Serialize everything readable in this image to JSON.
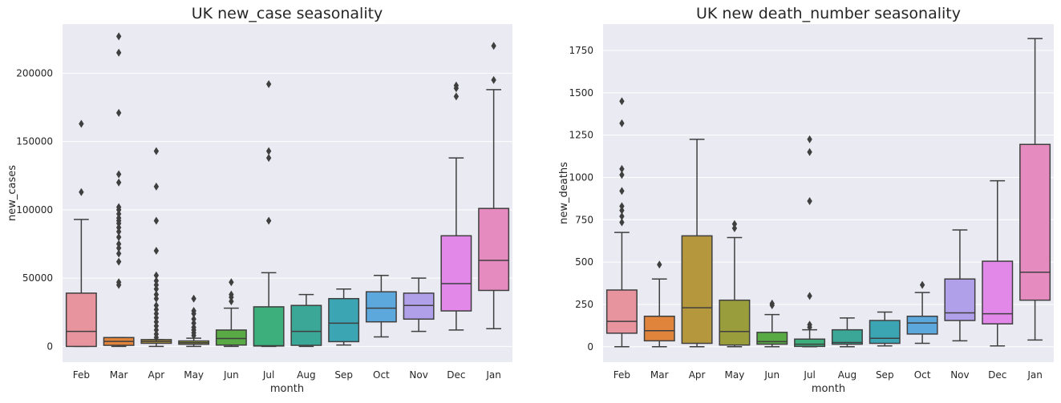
{
  "chart_data": [
    {
      "type": "box",
      "title": "UK new_case seasonality",
      "xlabel": "month",
      "ylabel": "new_cases",
      "ylim": [
        -11500,
        236000
      ],
      "yticks": [
        0,
        50000,
        100000,
        150000,
        200000
      ],
      "ytick_labels": [
        "0",
        "50000",
        "100000",
        "150000",
        "200000"
      ],
      "grid": true,
      "categories": [
        "Feb",
        "Mar",
        "Apr",
        "May",
        "Jun",
        "Jul",
        "Aug",
        "Sep",
        "Oct",
        "Nov",
        "Dec",
        "Jan"
      ],
      "colors": [
        "#e8949f",
        "#e0843c",
        "#b5973e",
        "#9a9d3c",
        "#59a944",
        "#3daf7d",
        "#3ba897",
        "#3ca5b4",
        "#5ca7dc",
        "#b0a0ea",
        "#e188e8",
        "#e68bc0"
      ],
      "boxes": [
        {
          "wlo": 0,
          "q1": 0,
          "med": 11000,
          "q3": 39000,
          "whi": 93000,
          "fliers": [
            113000,
            163000
          ]
        },
        {
          "wlo": 0,
          "q1": 800,
          "med": 3700,
          "q3": 6500,
          "whi": 6500,
          "fliers": [
            45000,
            47000,
            62000,
            68000,
            72000,
            75000,
            80000,
            84000,
            87000,
            90000,
            92000,
            94000,
            97000,
            100000,
            102000,
            120000,
            126000,
            171000,
            215000,
            227000
          ]
        },
        {
          "wlo": 0,
          "q1": 2300,
          "med": 3700,
          "q3": 5000,
          "whi": 5000,
          "fliers": [
            6500,
            9000,
            12000,
            15000,
            18000,
            21000,
            24000,
            27000,
            30000,
            35000,
            38000,
            42000,
            45000,
            48000,
            52000,
            70000,
            92000,
            117000,
            143000
          ]
        },
        {
          "wlo": 0,
          "q1": 1600,
          "med": 2700,
          "q3": 4000,
          "whi": 6000,
          "fliers": [
            8000,
            10000,
            12000,
            14000,
            17000,
            20000,
            24000,
            26000,
            35000
          ]
        },
        {
          "wlo": 0,
          "q1": 1000,
          "med": 5800,
          "q3": 12000,
          "whi": 28000,
          "fliers": [
            33000,
            36000,
            38000,
            47000
          ]
        },
        {
          "wlo": 0,
          "q1": 300,
          "med": 500,
          "q3": 29000,
          "whi": 54000,
          "fliers": [
            92000,
            138000,
            143000,
            192000
          ]
        },
        {
          "wlo": 0,
          "q1": 800,
          "med": 11000,
          "q3": 30000,
          "whi": 38000,
          "fliers": []
        },
        {
          "wlo": 1000,
          "q1": 3500,
          "med": 17000,
          "q3": 35000,
          "whi": 42000,
          "fliers": []
        },
        {
          "wlo": 7000,
          "q1": 18000,
          "med": 28000,
          "q3": 40000,
          "whi": 52000,
          "fliers": []
        },
        {
          "wlo": 11000,
          "q1": 20000,
          "med": 30000,
          "q3": 39000,
          "whi": 50000,
          "fliers": []
        },
        {
          "wlo": 12000,
          "q1": 26000,
          "med": 46000,
          "q3": 81000,
          "whi": 138000,
          "fliers": [
            183000,
            189000,
            191000
          ]
        },
        {
          "wlo": 13000,
          "q1": 41000,
          "med": 63000,
          "q3": 101000,
          "whi": 188000,
          "fliers": [
            195000,
            220000
          ]
        }
      ]
    },
    {
      "type": "box",
      "title": "UK new death_number seasonality",
      "xlabel": "month",
      "ylabel": "new_deaths",
      "ylim": [
        -91,
        1906
      ],
      "yticks": [
        0,
        250,
        500,
        750,
        1000,
        1250,
        1500,
        1750
      ],
      "ytick_labels": [
        "0",
        "250",
        "500",
        "750",
        "1000",
        "1250",
        "1500",
        "1750"
      ],
      "grid": true,
      "categories": [
        "Feb",
        "Mar",
        "Apr",
        "May",
        "Jun",
        "Jul",
        "Aug",
        "Sep",
        "Oct",
        "Nov",
        "Dec",
        "Jan"
      ],
      "colors": [
        "#e8949f",
        "#e0843c",
        "#b5973e",
        "#9a9d3c",
        "#59a944",
        "#3daf7d",
        "#3ba897",
        "#3ca5b4",
        "#5ca7dc",
        "#b0a0ea",
        "#e188e8",
        "#e68bc0"
      ],
      "boxes": [
        {
          "wlo": 0,
          "q1": 80,
          "med": 150,
          "q3": 335,
          "whi": 675,
          "fliers": [
            735,
            770,
            805,
            830,
            920,
            1015,
            1050,
            1320,
            1450
          ]
        },
        {
          "wlo": 0,
          "q1": 35,
          "med": 95,
          "q3": 180,
          "whi": 400,
          "fliers": [
            485
          ]
        },
        {
          "wlo": 0,
          "q1": 20,
          "med": 230,
          "q3": 655,
          "whi": 1225,
          "fliers": []
        },
        {
          "wlo": 0,
          "q1": 10,
          "med": 90,
          "q3": 275,
          "whi": 645,
          "fliers": [
            700,
            725
          ]
        },
        {
          "wlo": 0,
          "q1": 15,
          "med": 30,
          "q3": 85,
          "whi": 190,
          "fliers": [
            245,
            255
          ]
        },
        {
          "wlo": 0,
          "q1": 2,
          "med": 15,
          "q3": 45,
          "whi": 100,
          "fliers": [
            115,
            130,
            300,
            860,
            1150,
            1225
          ]
        },
        {
          "wlo": 0,
          "q1": 15,
          "med": 25,
          "q3": 100,
          "whi": 170,
          "fliers": []
        },
        {
          "wlo": 5,
          "q1": 20,
          "med": 50,
          "q3": 155,
          "whi": 205,
          "fliers": []
        },
        {
          "wlo": 20,
          "q1": 75,
          "med": 140,
          "q3": 180,
          "whi": 320,
          "fliers": [
            365
          ]
        },
        {
          "wlo": 35,
          "q1": 155,
          "med": 200,
          "q3": 400,
          "whi": 690,
          "fliers": []
        },
        {
          "wlo": 5,
          "q1": 135,
          "med": 195,
          "q3": 505,
          "whi": 980,
          "fliers": []
        },
        {
          "wlo": 40,
          "q1": 275,
          "med": 440,
          "q3": 1195,
          "whi": 1820,
          "fliers": []
        }
      ]
    }
  ]
}
